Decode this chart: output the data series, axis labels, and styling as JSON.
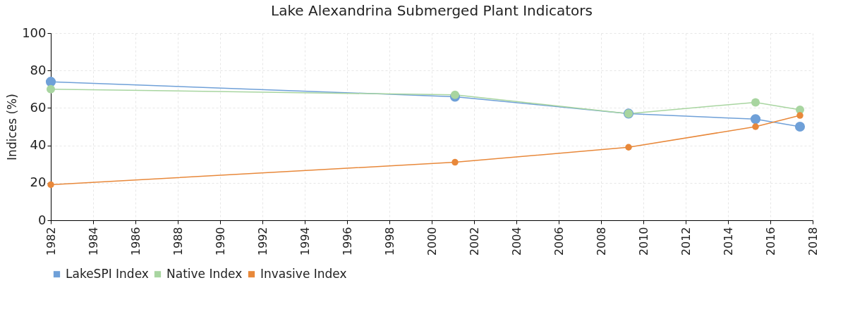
{
  "chart_data": {
    "type": "line",
    "title": "Lake Alexandrina Submerged Plant Indicators",
    "ylabel": "Indices (%)",
    "x": [
      1982,
      2001.1,
      2009.3,
      2015.3,
      2017.4
    ],
    "series": [
      {
        "name": "LakeSPI Index",
        "color": "#6fa0d8",
        "values": [
          74,
          66,
          57,
          54,
          50
        ]
      },
      {
        "name": "Native Index",
        "color": "#a8d5a0",
        "values": [
          70,
          67,
          57,
          63,
          59
        ]
      },
      {
        "name": "Invasive Index",
        "color": "#e8883a",
        "values": [
          19,
          31,
          39,
          50,
          56
        ]
      }
    ],
    "xlim": [
      1982,
      2018
    ],
    "xticks": [
      1982,
      1984,
      1986,
      1988,
      1990,
      1992,
      1994,
      1996,
      1998,
      2000,
      2002,
      2004,
      2006,
      2008,
      2010,
      2012,
      2014,
      2016,
      2018
    ],
    "ylim": [
      0,
      100
    ],
    "yticks": [
      0,
      20,
      40,
      60,
      80,
      100
    ],
    "grid": true,
    "legend": "bottom",
    "marker": "circle",
    "line_style": "solid"
  }
}
